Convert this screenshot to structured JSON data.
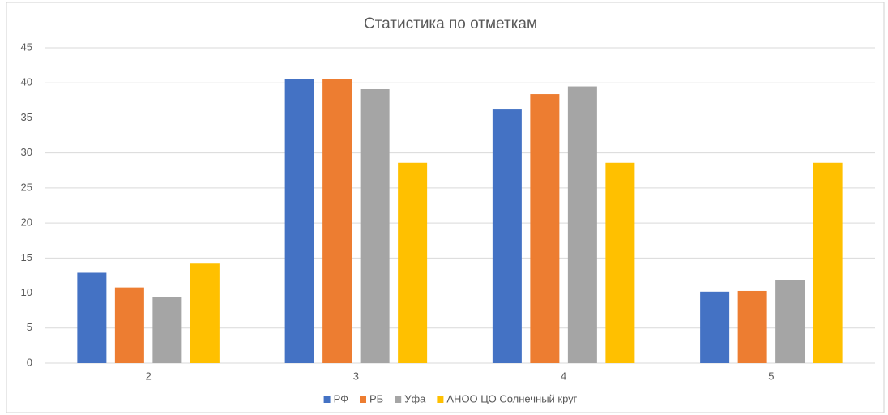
{
  "chart_data": {
    "type": "bar",
    "title": "Статистика по отметкам",
    "categories": [
      "2",
      "3",
      "4",
      "5"
    ],
    "series": [
      {
        "name": "РФ",
        "color": "#4472c4",
        "values": [
          12.9,
          40.5,
          36.2,
          10.2
        ]
      },
      {
        "name": "РБ",
        "color": "#ed7d31",
        "values": [
          10.8,
          40.5,
          38.4,
          10.3
        ]
      },
      {
        "name": "Уфа",
        "color": "#a5a5a5",
        "values": [
          9.4,
          39.1,
          39.5,
          11.8
        ]
      },
      {
        "name": "АНОО ЦО Солнечный круг",
        "color": "#ffc000",
        "values": [
          14.2,
          28.6,
          28.6,
          28.6
        ]
      }
    ],
    "ylim": [
      0,
      45
    ],
    "yticks": [
      0,
      5,
      10,
      15,
      20,
      25,
      30,
      35,
      40,
      45
    ],
    "grid": true,
    "legend": "bottom"
  }
}
